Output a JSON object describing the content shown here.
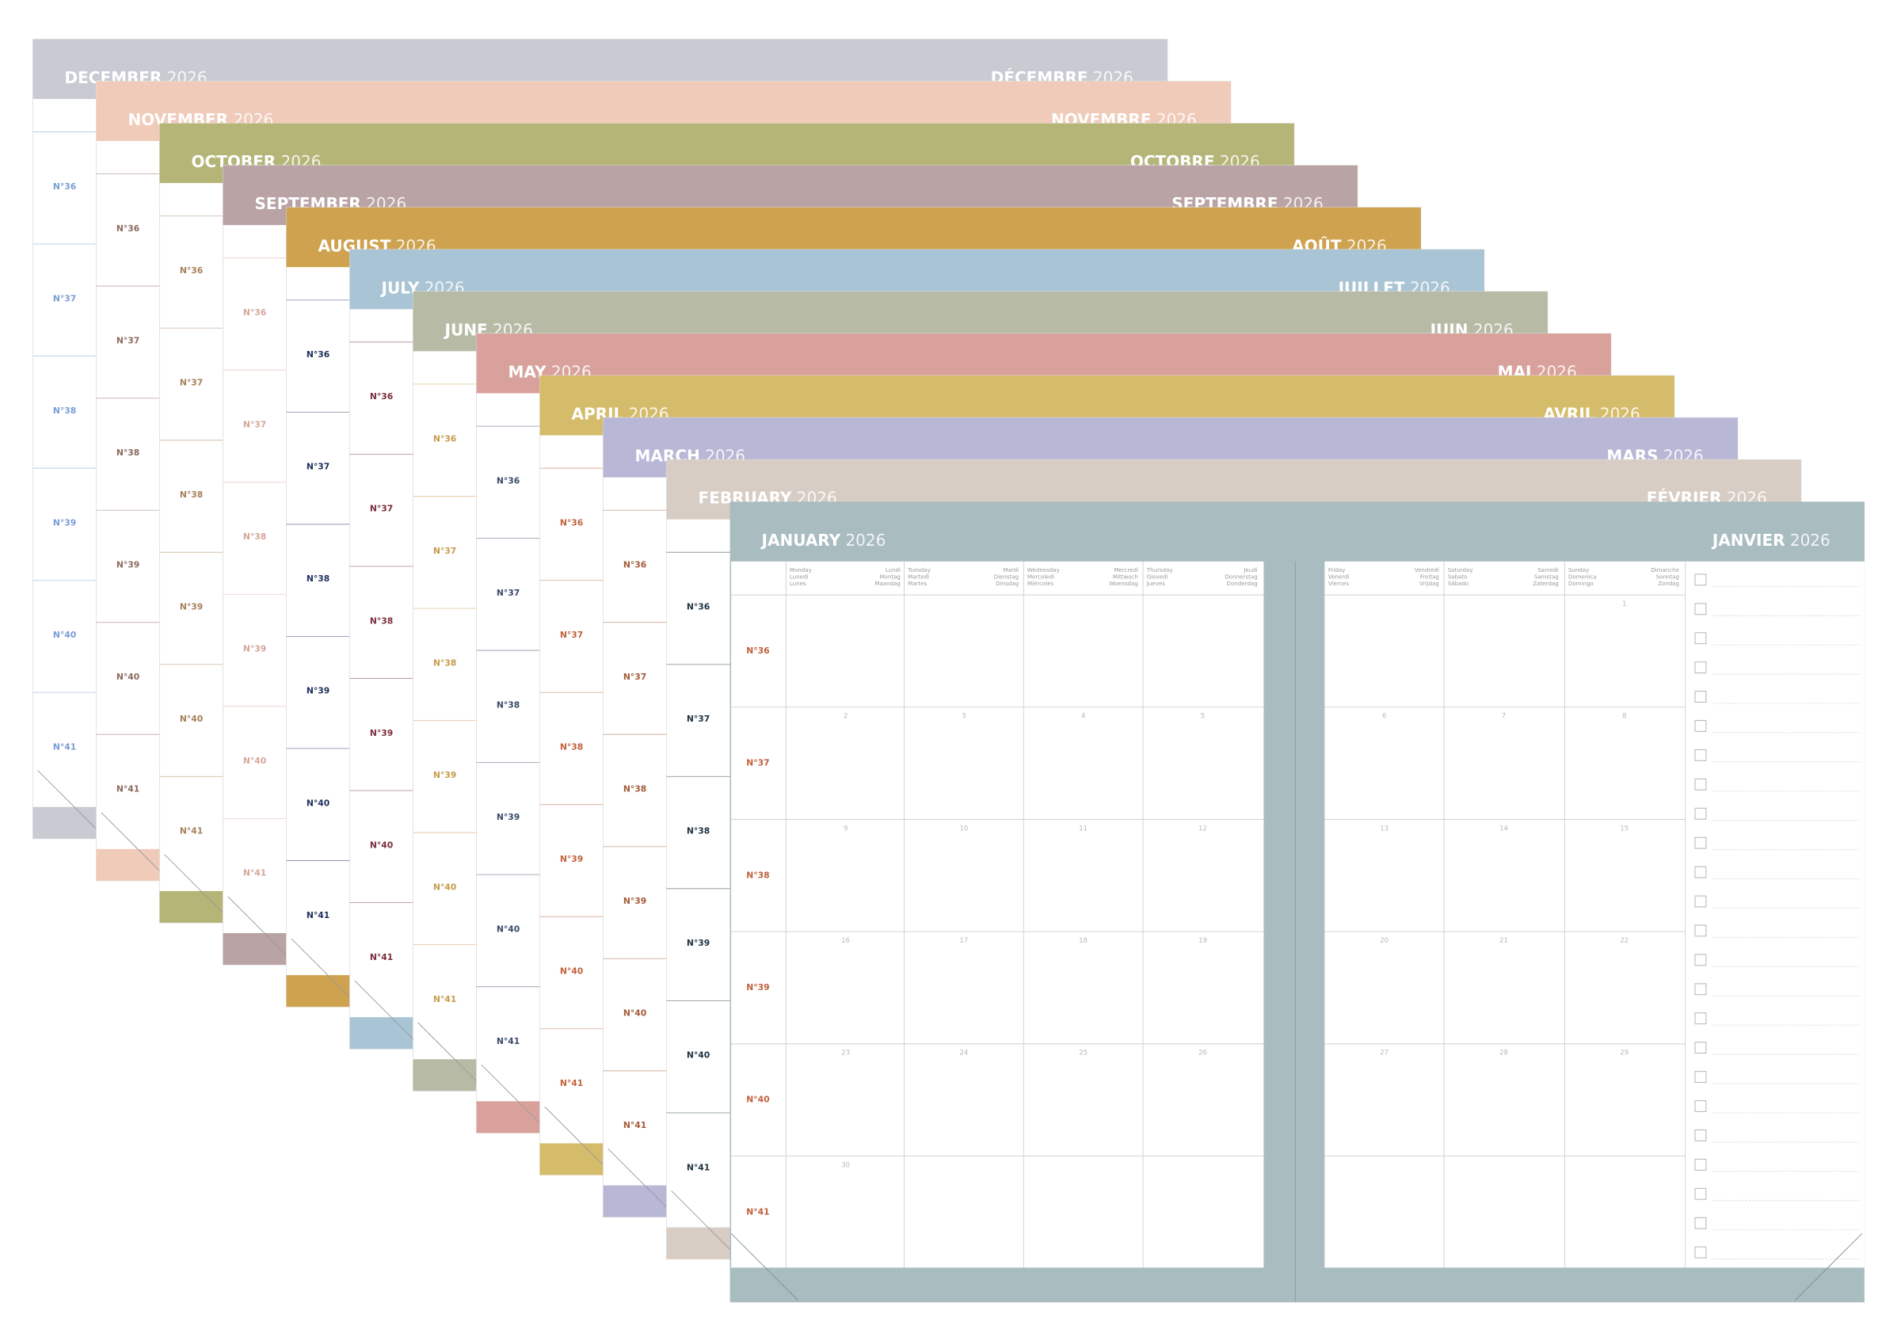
{
  "week_labels": [
    "N°36",
    "N°37",
    "N°38",
    "N°39",
    "N°40",
    "N°41"
  ],
  "sheets": [
    {
      "month_en": "DECEMBER",
      "month_fr": "DÉCEMBRE",
      "year": "2026",
      "color": "#c9cbd3",
      "week_color": "#7b9bd4"
    },
    {
      "month_en": "NOVEMBER",
      "month_fr": "NOVEMBRE",
      "year": "2026",
      "color": "#f0cbb9",
      "week_color": "#8a6a5e"
    },
    {
      "month_en": "OCTOBER",
      "month_fr": "OCTOBRE",
      "year": "2026",
      "color": "#b5b578",
      "week_color": "#a3805a"
    },
    {
      "month_en": "SEPTEMBER",
      "month_fr": "SEPTEMBRE",
      "year": "2026",
      "color": "#b9a3a5",
      "week_color": "#d8a598"
    },
    {
      "month_en": "AUGUST",
      "month_fr": "AOÛT",
      "year": "2026",
      "color": "#cea24e",
      "week_color": "#1d2f5a"
    },
    {
      "month_en": "JULY",
      "month_fr": "JUILLET",
      "year": "2026",
      "color": "#a9c4d4",
      "week_color": "#7a2c3a"
    },
    {
      "month_en": "JUNE",
      "month_fr": "JUIN",
      "year": "2026",
      "color": "#b7bba6",
      "week_color": "#c79a4a"
    },
    {
      "month_en": "MAY",
      "month_fr": "MAI",
      "year": "2026",
      "color": "#d9a19b",
      "week_color": "#3a4a6a"
    },
    {
      "month_en": "APRIL",
      "month_fr": "AVRIL",
      "year": "2026",
      "color": "#d5bc6a",
      "week_color": "#c0603a"
    },
    {
      "month_en": "MARCH",
      "month_fr": "MARS",
      "year": "2026",
      "color": "#b9b7d6",
      "week_color": "#a45a3a"
    },
    {
      "month_en": "FEBRUARY",
      "month_fr": "FÉVRIER",
      "year": "2026",
      "color": "#d8cdc4",
      "week_color": "#1e3340"
    },
    {
      "month_en": "JANUARY",
      "month_fr": "JANVIER",
      "year": "2026",
      "color": "#a9bcc0",
      "week_color": "#c0603a"
    }
  ],
  "january": {
    "day_headers": [
      {
        "left": [
          "Monday",
          "Lunedì",
          "Lunes"
        ],
        "right": [
          "Lundi",
          "Montag",
          "Maandag"
        ]
      },
      {
        "left": [
          "Tuesday",
          "Martedì",
          "Martes"
        ],
        "right": [
          "Mardi",
          "Dienstag",
          "Dinsdag"
        ]
      },
      {
        "left": [
          "Wednesday",
          "Mercoledì",
          "Miércoles"
        ],
        "right": [
          "Mercredi",
          "Mittwoch",
          "Woensdag"
        ]
      },
      {
        "left": [
          "Thursday",
          "Giovedì",
          "Jueves"
        ],
        "right": [
          "Jeudi",
          "Donnerstag",
          "Donderdag"
        ]
      },
      {
        "left": [
          "Friday",
          "Venerdì",
          "Viernes"
        ],
        "right": [
          "Vendredi",
          "Freitag",
          "Vrijdag"
        ]
      },
      {
        "left": [
          "Saturday",
          "Sabato",
          "Sábado"
        ],
        "right": [
          "Samedi",
          "Samstag",
          "Zaterdag"
        ]
      },
      {
        "left": [
          "Sunday",
          "Domenica",
          "Domingo"
        ],
        "right": [
          "Dimanche",
          "Sonntag",
          "Zondag"
        ]
      }
    ],
    "dates": [
      [
        null,
        null,
        null,
        null,
        null,
        null,
        1
      ],
      [
        2,
        3,
        4,
        5,
        6,
        7,
        8
      ],
      [
        9,
        10,
        11,
        12,
        13,
        14,
        15
      ],
      [
        16,
        17,
        18,
        19,
        20,
        21,
        22
      ],
      [
        23,
        24,
        25,
        26,
        27,
        28,
        29
      ],
      [
        30,
        null,
        null,
        null,
        null,
        null,
        null
      ]
    ]
  }
}
